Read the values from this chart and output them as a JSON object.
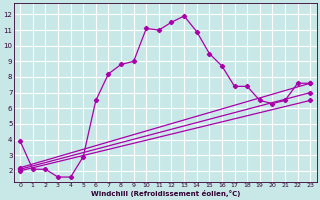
{
  "xlabel": "Windchill (Refroidissement éolien,°C)",
  "bg_color": "#c8e8e8",
  "grid_color": "#ffffff",
  "line_color": "#aa00aa",
  "xlim": [
    -0.5,
    23.5
  ],
  "ylim": [
    1.3,
    12.7
  ],
  "xticks": [
    0,
    1,
    2,
    3,
    4,
    5,
    6,
    7,
    8,
    9,
    10,
    11,
    12,
    13,
    14,
    15,
    16,
    17,
    18,
    19,
    20,
    21,
    22,
    23
  ],
  "yticks": [
    2,
    3,
    4,
    5,
    6,
    7,
    8,
    9,
    10,
    11,
    12
  ],
  "curve1_x": [
    0,
    1,
    2,
    3,
    4,
    5,
    6,
    7,
    8,
    9,
    10,
    11,
    12,
    13,
    14,
    15,
    16,
    17,
    18,
    19,
    20,
    21,
    22,
    23
  ],
  "curve1_y": [
    3.9,
    2.1,
    2.1,
    1.6,
    1.6,
    2.9,
    6.5,
    8.2,
    8.8,
    9.0,
    11.1,
    11.0,
    11.5,
    11.9,
    10.9,
    9.5,
    8.7,
    7.4,
    7.4,
    6.5,
    6.3,
    6.5,
    7.6,
    7.6
  ],
  "curve2_x": [
    0,
    23
  ],
  "curve2_y": [
    2.0,
    6.5
  ],
  "curve3_x": [
    0,
    23
  ],
  "curve3_y": [
    2.1,
    7.0
  ],
  "curve4_x": [
    0,
    23
  ],
  "curve4_y": [
    2.2,
    7.6
  ]
}
